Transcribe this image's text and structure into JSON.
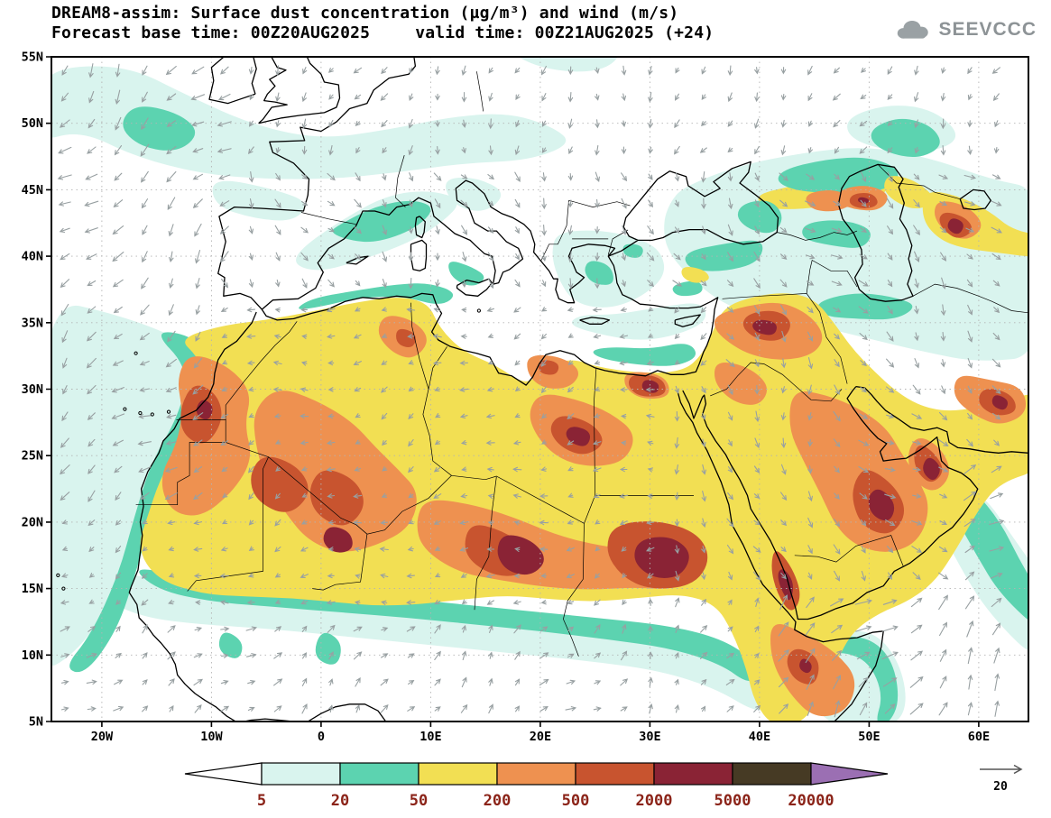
{
  "header": {
    "title": "DREAM8-assim: Surface dust concentration (µg/m³) and wind (m/s)",
    "forecast_line_left": "Forecast base time: 00Z20AUG2025",
    "forecast_line_right": "valid time: 00Z21AUG2025 (+24)",
    "logo_text": "SEEVCCC"
  },
  "map": {
    "lat_labels": [
      "55N",
      "50N",
      "45N",
      "40N",
      "35N",
      "30N",
      "25N",
      "20N",
      "15N",
      "10N",
      "5N"
    ],
    "lon_labels": [
      "20W",
      "10W",
      "0",
      "10E",
      "20E",
      "30E",
      "40E",
      "50E",
      "60E"
    ]
  },
  "colorbar": {
    "labels": [
      "5",
      "20",
      "50",
      "200",
      "500",
      "2000",
      "5000",
      "20000"
    ],
    "segment_colors": [
      "#d9f4ee",
      "#5cd3b0",
      "#f2df53",
      "#ee9150",
      "#c8542f",
      "#8a2335",
      "#463a24"
    ],
    "under_color": "#ffffff",
    "over_color": "#9b6fb3",
    "label_color": "#8b2318"
  },
  "wind_reference": {
    "label": "20"
  },
  "chart_data": {
    "type": "heatmap",
    "model": "DREAM8-assim",
    "variable": "Surface dust concentration",
    "units": "µg/m³",
    "overlay": "wind vectors",
    "wind_units": "m/s",
    "forecast_base_time": "00Z20AUG2025",
    "valid_time": "00Z21AUG2025",
    "lead_hours": 24,
    "contour_levels": [
      5,
      20,
      50,
      200,
      500,
      2000,
      5000,
      20000
    ],
    "colorbar_colors": [
      "#d9f4ee",
      "#5cd3b0",
      "#f2df53",
      "#ee9150",
      "#c8542f",
      "#8a2335",
      "#463a24"
    ],
    "under_color": "#ffffff",
    "over_color": "#9b6fb3",
    "lat_ticks": [
      "55N",
      "50N",
      "45N",
      "40N",
      "35N",
      "30N",
      "25N",
      "20N",
      "15N",
      "10N",
      "5N"
    ],
    "lon_ticks": [
      "20W",
      "10W",
      "0",
      "10E",
      "20E",
      "30E",
      "40E",
      "50E",
      "60E"
    ],
    "wind_reference_ms": 20,
    "legend_position": "bottom",
    "notes": "Filled contours of surface dust concentration over North Africa, the Mediterranean, Europe and the Middle East with overlaid gray wind vectors; highest dust (500-5000 µg/m³) over the Sahara, Sudan, Arabian Peninsula and Horn of Africa"
  }
}
